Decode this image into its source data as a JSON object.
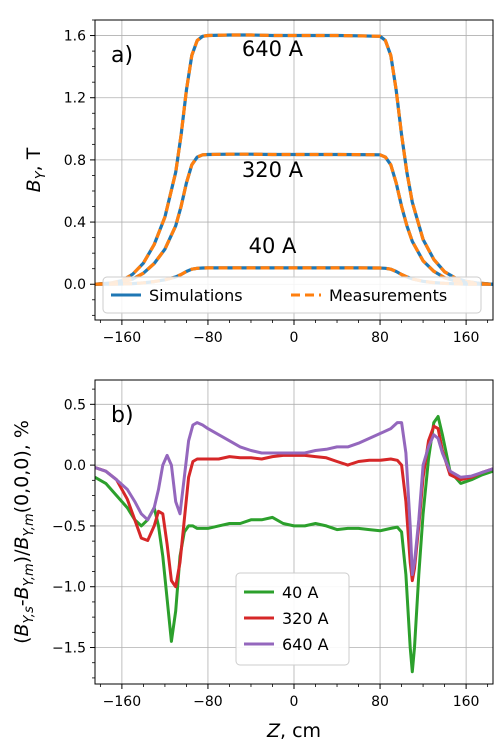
{
  "chart_data": [
    {
      "type": "line",
      "panel_label": "a)",
      "xlabel": "",
      "ylabel_main": "B",
      "ylabel_sub": "Y",
      "ylabel_suffix": ", T",
      "xlim": [
        -185,
        185
      ],
      "ylim": [
        -0.23,
        1.7
      ],
      "xticks": [
        -160,
        -80,
        0,
        80,
        160
      ],
      "yticks": [
        0.0,
        0.4,
        0.8,
        1.2,
        1.6
      ],
      "xtick_labels": [
        "−160",
        "−80",
        "0",
        "80",
        "160"
      ],
      "ytick_labels": [
        "0.0",
        "0.4",
        "0.8",
        "1.2",
        "1.6"
      ],
      "grid": true,
      "legend_position": "lower-center",
      "legend": [
        {
          "name": "Simulations",
          "color": "#1f77b4",
          "dash": "solid"
        },
        {
          "name": "Measurements",
          "color": "#ff7f0e",
          "dash": "dashed"
        }
      ],
      "annotations": [
        {
          "text": "640 A",
          "x": -20,
          "y": 1.47
        },
        {
          "text": "320 A",
          "x": -20,
          "y": 0.69
        },
        {
          "text": "40 A",
          "x": -20,
          "y": 0.2
        }
      ],
      "profile_z": [
        -185,
        -170,
        -160,
        -150,
        -140,
        -130,
        -120,
        -110,
        -105,
        -100,
        -95,
        -90,
        -85,
        -80,
        -60,
        -40,
        -20,
        0,
        20,
        40,
        60,
        80,
        85,
        90,
        95,
        100,
        105,
        110,
        120,
        130,
        140,
        150,
        160,
        170,
        185
      ],
      "profile_shape": [
        0.0,
        0.005,
        0.015,
        0.04,
        0.085,
        0.16,
        0.27,
        0.45,
        0.6,
        0.78,
        0.92,
        0.98,
        0.997,
        1.0,
        1.002,
        1.002,
        1.0,
        1.0,
        1.0,
        1.0,
        0.999,
        0.997,
        0.98,
        0.92,
        0.78,
        0.6,
        0.45,
        0.33,
        0.18,
        0.1,
        0.05,
        0.025,
        0.012,
        0.005,
        0.0
      ],
      "series": [
        {
          "name": "640 A",
          "peak": 1.6
        },
        {
          "name": "320 A",
          "peak": 0.835
        },
        {
          "name": "40 A",
          "peak": 0.105
        }
      ]
    },
    {
      "type": "line",
      "panel_label": "b)",
      "ylabel_text": "(Bᵧ,s-Bᵧ,m)/Bᵧ,m(0,0,0), %",
      "ylabel_parts": [
        "(",
        "B",
        "Y,s",
        "-",
        "B",
        "Y,m",
        ")/",
        "B",
        "Y,m",
        "(0,0,0), %"
      ],
      "xlabel_main": "Z",
      "xlabel_suffix": ", cm",
      "xlim": [
        -185,
        185
      ],
      "ylim": [
        -1.8,
        0.7
      ],
      "xticks": [
        -160,
        -80,
        0,
        80,
        160
      ],
      "yticks": [
        -1.5,
        -1.0,
        -0.5,
        0.0,
        0.5
      ],
      "xtick_labels": [
        "−160",
        "−80",
        "0",
        "80",
        "160"
      ],
      "ytick_labels": [
        "−1.5",
        "−1.0",
        "−0.5",
        "0.0",
        "0.5"
      ],
      "grid": true,
      "legend_position": "lower-center",
      "series": [
        {
          "name": "40 A",
          "color": "#2ca02c",
          "x": [
            -185,
            -175,
            -165,
            -155,
            -148,
            -142,
            -136,
            -130,
            -126,
            -122,
            -118,
            -114,
            -110,
            -106,
            -102,
            -98,
            -94,
            -90,
            -85,
            -80,
            -70,
            -60,
            -50,
            -40,
            -30,
            -20,
            -10,
            0,
            10,
            20,
            30,
            40,
            50,
            60,
            70,
            80,
            90,
            96,
            100,
            104,
            108,
            110,
            112,
            116,
            120,
            125,
            130,
            134,
            138,
            145,
            155,
            165,
            175,
            185
          ],
          "y": [
            -0.1,
            -0.15,
            -0.25,
            -0.35,
            -0.45,
            -0.5,
            -0.45,
            -0.35,
            -0.5,
            -0.75,
            -1.1,
            -1.45,
            -1.2,
            -0.75,
            -0.55,
            -0.5,
            -0.5,
            -0.52,
            -0.52,
            -0.52,
            -0.5,
            -0.48,
            -0.48,
            -0.45,
            -0.45,
            -0.43,
            -0.48,
            -0.5,
            -0.5,
            -0.48,
            -0.5,
            -0.53,
            -0.52,
            -0.52,
            -0.53,
            -0.54,
            -0.52,
            -0.51,
            -0.55,
            -0.9,
            -1.5,
            -1.7,
            -1.5,
            -0.9,
            -0.4,
            0.05,
            0.35,
            0.4,
            0.25,
            -0.05,
            -0.15,
            -0.12,
            -0.08,
            -0.05
          ]
        },
        {
          "name": "320 A",
          "color": "#d62728",
          "x": [
            -185,
            -175,
            -165,
            -155,
            -148,
            -142,
            -136,
            -130,
            -126,
            -122,
            -118,
            -114,
            -110,
            -106,
            -102,
            -98,
            -94,
            -90,
            -85,
            -80,
            -70,
            -60,
            -50,
            -40,
            -30,
            -20,
            -10,
            0,
            10,
            20,
            30,
            40,
            50,
            60,
            70,
            80,
            90,
            96,
            100,
            104,
            108,
            110,
            112,
            116,
            120,
            125,
            130,
            134,
            138,
            145,
            155,
            165,
            175,
            185
          ],
          "y": [
            -0.02,
            -0.05,
            -0.12,
            -0.28,
            -0.45,
            -0.6,
            -0.62,
            -0.5,
            -0.38,
            -0.4,
            -0.65,
            -0.95,
            -1.0,
            -0.8,
            -0.45,
            -0.1,
            0.03,
            0.05,
            0.05,
            0.05,
            0.05,
            0.07,
            0.06,
            0.06,
            0.05,
            0.07,
            0.08,
            0.08,
            0.08,
            0.07,
            0.06,
            0.03,
            0.0,
            0.03,
            0.04,
            0.04,
            0.05,
            0.04,
            0.0,
            -0.3,
            -0.8,
            -0.95,
            -0.85,
            -0.5,
            -0.1,
            0.2,
            0.32,
            0.3,
            0.12,
            -0.08,
            -0.12,
            -0.1,
            -0.06,
            -0.03
          ]
        },
        {
          "name": "640 A",
          "color": "#9467bd",
          "x": [
            -185,
            -175,
            -165,
            -155,
            -148,
            -142,
            -136,
            -130,
            -126,
            -122,
            -118,
            -114,
            -110,
            -106,
            -102,
            -98,
            -94,
            -90,
            -85,
            -80,
            -70,
            -60,
            -50,
            -40,
            -30,
            -20,
            -10,
            0,
            10,
            20,
            30,
            40,
            50,
            60,
            70,
            80,
            90,
            96,
            100,
            104,
            108,
            110,
            112,
            116,
            120,
            125,
            130,
            134,
            138,
            145,
            155,
            165,
            175,
            185
          ],
          "y": [
            -0.02,
            -0.05,
            -0.12,
            -0.2,
            -0.3,
            -0.4,
            -0.45,
            -0.35,
            -0.2,
            0.0,
            0.08,
            0.0,
            -0.3,
            -0.4,
            -0.1,
            0.2,
            0.33,
            0.35,
            0.33,
            0.3,
            0.25,
            0.2,
            0.15,
            0.12,
            0.1,
            0.1,
            0.1,
            0.1,
            0.1,
            0.12,
            0.13,
            0.15,
            0.15,
            0.18,
            0.22,
            0.26,
            0.3,
            0.35,
            0.35,
            0.1,
            -0.5,
            -0.9,
            -0.8,
            -0.45,
            0.0,
            0.15,
            0.25,
            0.22,
            0.1,
            -0.05,
            -0.1,
            -0.09,
            -0.06,
            -0.03
          ]
        }
      ]
    }
  ]
}
